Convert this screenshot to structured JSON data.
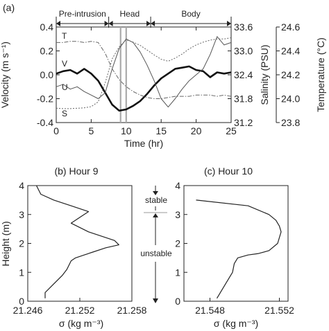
{
  "chart_data": [
    {
      "panel": "(a)",
      "type": "line",
      "xlabel": "Time (hr)",
      "xlim": [
        0,
        25
      ],
      "xticks": [
        "0",
        "5",
        "10",
        "15",
        "20",
        "25"
      ],
      "ylabel_left": "Velocity (m s⁻¹)",
      "ylim_left": [
        -0.4,
        0.4
      ],
      "yticks_left": [
        "-0.4",
        "-0.2",
        "0.0",
        "0.2",
        "0.4"
      ],
      "ylabel_salinity": "Salinity (PSU)",
      "ylim_salinity": [
        31.2,
        33.6
      ],
      "yticks_salinity": [
        "31.2",
        "31.8",
        "32.4",
        "33.0",
        "33.6"
      ],
      "ylabel_temperature": "Temperature (°C)",
      "ylim_temperature": [
        23.8,
        24.6
      ],
      "yticks_temperature": [
        "23.8",
        "24.0",
        "24.2",
        "24.4",
        "24.6"
      ],
      "phases": [
        {
          "label": "Pre-intrusion",
          "start": 0,
          "end": 7.5
        },
        {
          "label": "Head",
          "start": 7.5,
          "end": 13.5
        },
        {
          "label": "Body",
          "start": 13.5,
          "end": 25
        }
      ],
      "markers": [
        9.2,
        10
      ],
      "series": [
        {
          "name": "V",
          "axis": "velocity",
          "x": [
            0,
            1,
            2,
            3,
            4,
            5,
            6,
            7,
            8,
            9,
            10,
            11,
            12,
            13,
            14,
            15,
            16,
            17,
            18,
            19,
            20,
            21,
            22,
            23,
            24,
            25
          ],
          "y": [
            0.01,
            0.03,
            0.04,
            0.01,
            0.05,
            0.01,
            -0.05,
            -0.15,
            -0.25,
            -0.3,
            -0.29,
            -0.26,
            -0.22,
            -0.16,
            -0.09,
            -0.03,
            0.01,
            0.05,
            0.06,
            0.07,
            0.04,
            0.03,
            -0.02,
            0.02,
            0.01,
            0.02
          ]
        },
        {
          "name": "U",
          "axis": "velocity",
          "x": [
            0,
            1,
            2,
            3,
            4,
            5,
            6,
            7,
            8,
            9,
            10,
            11,
            12,
            13,
            14,
            15,
            16,
            17,
            18,
            19,
            20,
            21,
            22,
            23,
            24,
            25
          ],
          "y": [
            -0.1,
            -0.08,
            -0.12,
            -0.1,
            -0.14,
            -0.17,
            -0.2,
            -0.15,
            0.05,
            0.22,
            0.3,
            0.27,
            0.19,
            0.08,
            -0.05,
            -0.2,
            -0.27,
            -0.2,
            -0.12,
            -0.05,
            0.0,
            0.05,
            0.17,
            0.32,
            0.25,
            0.27
          ]
        },
        {
          "name": "T",
          "axis": "temperature",
          "x": [
            0,
            1,
            2,
            3,
            4,
            5,
            6,
            7,
            8,
            9,
            10,
            11,
            12,
            13,
            14,
            15,
            16,
            17,
            18,
            19,
            20,
            21,
            22,
            23,
            24,
            25
          ],
          "y": [
            24.47,
            24.47,
            24.48,
            24.48,
            24.47,
            24.48,
            24.47,
            24.38,
            24.25,
            24.16,
            24.1,
            24.06,
            24.03,
            24.01,
            24.0,
            24.0,
            24.01,
            24.02,
            24.02,
            24.02,
            24.03,
            24.03,
            24.03,
            24.02,
            24.03,
            24.02
          ]
        },
        {
          "name": "S",
          "axis": "salinity",
          "x": [
            0,
            1,
            2,
            3,
            4,
            5,
            6,
            7,
            8,
            9,
            10,
            11,
            12,
            13,
            14,
            15,
            16,
            17,
            18,
            19,
            20,
            21,
            22,
            23,
            24,
            25
          ],
          "y": [
            31.56,
            31.55,
            31.55,
            31.56,
            31.57,
            31.6,
            31.72,
            32.2,
            32.8,
            33.1,
            33.28,
            33.22,
            33.14,
            33.02,
            32.9,
            32.79,
            32.74,
            32.82,
            32.92,
            33.05,
            33.15,
            33.22,
            33.27,
            33.3,
            33.3,
            33.33
          ]
        }
      ],
      "series_labels": [
        "T",
        "V",
        "U",
        "S"
      ]
    },
    {
      "panel": "(b)",
      "title": "(b) Hour 9",
      "type": "line",
      "xlabel": "σ  (kg m⁻³)",
      "xlim": [
        21.246,
        21.258
      ],
      "xticks": [
        "21.246",
        "21.252",
        "21.258"
      ],
      "ylabel": "Height (m)",
      "ylim": [
        0,
        4
      ],
      "yticks": [
        "0",
        "1",
        "2",
        "3",
        "4"
      ],
      "series": [
        {
          "x": [
            21.248,
            21.248,
            21.249,
            21.25,
            21.2505,
            21.251,
            21.2515,
            21.2525,
            21.2535,
            21.255,
            21.2565,
            21.256,
            21.253,
            21.251,
            21.252,
            21.253,
            21.251,
            21.249,
            21.2475,
            21.247
          ],
          "y": [
            0.1,
            0.3,
            0.6,
            0.9,
            1.1,
            1.4,
            1.5,
            1.6,
            1.7,
            1.85,
            1.95,
            2.1,
            2.4,
            2.7,
            2.9,
            3.1,
            3.3,
            3.5,
            3.7,
            4.0
          ]
        }
      ]
    },
    {
      "panel": "(c)",
      "title": "(c) Hour 10",
      "type": "line",
      "xlabel": "σ  (kg m⁻³)",
      "xlim": [
        21.5465,
        21.5525
      ],
      "xticks": [
        "21.548",
        "21.552"
      ],
      "ylabel": "",
      "ylim": [
        0,
        4
      ],
      "yticks": [
        "0",
        "1",
        "2",
        "3",
        "4"
      ],
      "series": [
        {
          "x": [
            21.5484,
            21.5488,
            21.5491,
            21.5493,
            21.5494,
            21.5496,
            21.5502,
            21.5508,
            21.5514,
            21.5519,
            21.5521,
            21.552,
            21.5518,
            21.5514,
            21.5502,
            21.5472
          ],
          "y": [
            0.1,
            0.5,
            0.8,
            1.0,
            1.3,
            1.5,
            1.6,
            1.65,
            1.75,
            2.0,
            2.4,
            2.6,
            2.8,
            3.0,
            3.3,
            3.5
          ]
        }
      ]
    }
  ],
  "annotations": {
    "stable": "stable",
    "unstable": "unstable"
  }
}
